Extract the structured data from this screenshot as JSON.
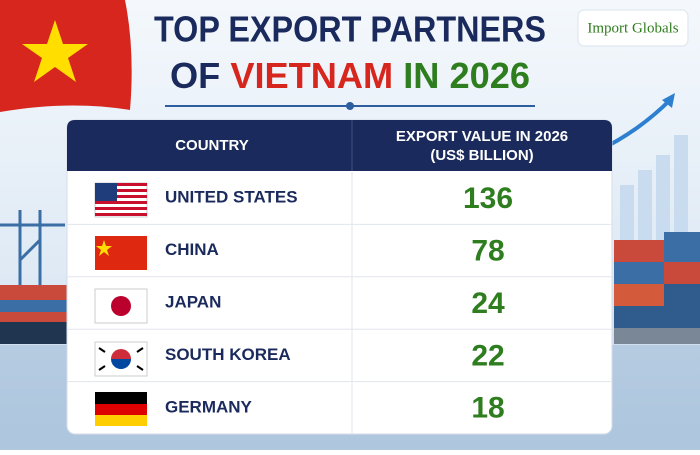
{
  "header": {
    "title_line1": "TOP EXPORT PARTNERS",
    "title_line2_start": "OF",
    "title_line2_country": "VIETNAM",
    "title_line2_end": "IN 2026",
    "logo": "Import Globals"
  },
  "table": {
    "columns": [
      "COUNTRY",
      "EXPORT VALUE IN 2026",
      "(US$ BILLION)"
    ],
    "rows": [
      [
        "UNITED STATES",
        136
      ],
      [
        "CHINA",
        78
      ],
      [
        "JAPAN",
        24
      ],
      [
        "SOUTH KOREA",
        22
      ],
      [
        "GERMANY",
        18
      ]
    ]
  }
}
